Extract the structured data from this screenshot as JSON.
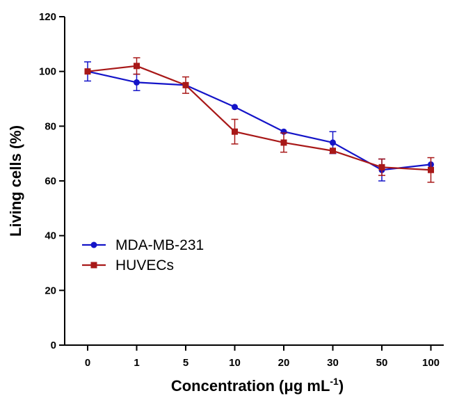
{
  "chart_data": {
    "type": "line",
    "xlabel": "Concentration (μg mL",
    "xlabel_superscript": "-1",
    "xlabel_close": ")",
    "ylabel": "Living cells (%)",
    "categories": [
      "0",
      "1",
      "5",
      "10",
      "20",
      "30",
      "50",
      "100"
    ],
    "ylim": [
      0,
      120
    ],
    "yticks": [
      0,
      20,
      40,
      60,
      80,
      100,
      120
    ],
    "grid": false,
    "legend_position": "center-left",
    "series": [
      {
        "name": "MDA-MB-231",
        "color": "#1414c8",
        "marker": "circle",
        "values": [
          100,
          96,
          95,
          87,
          78,
          74,
          64,
          66
        ],
        "errors": [
          3.5,
          3,
          0,
          0,
          0,
          4,
          4,
          0
        ]
      },
      {
        "name": "HUVECs",
        "color": "#a81818",
        "marker": "square",
        "values": [
          100,
          102,
          95,
          78,
          74,
          71,
          65,
          64
        ],
        "errors": [
          0,
          3,
          3,
          4.5,
          3.5,
          0,
          3,
          4.5
        ]
      }
    ]
  }
}
